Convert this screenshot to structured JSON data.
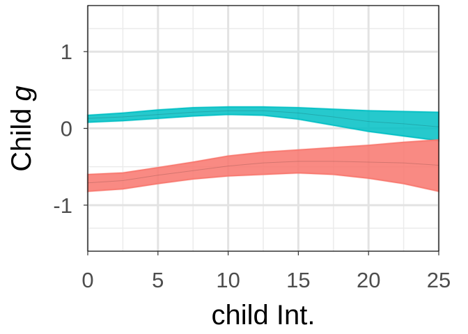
{
  "chart_data": {
    "type": "area",
    "xlabel": "child Int.",
    "ylabel": "Child",
    "ylabel_symbol": "g",
    "xlim": [
      0,
      25
    ],
    "ylim": [
      -1.6,
      1.6
    ],
    "x_ticks": [
      0,
      5,
      10,
      15,
      20,
      25
    ],
    "y_ticks": [
      -1,
      0,
      1
    ],
    "grid": true,
    "legend": "none",
    "colors": {
      "teal": "#00BFC4",
      "red": "#F8766D"
    },
    "series": [
      {
        "color": "#00BFC4",
        "x": [
          0,
          2.5,
          5,
          7.5,
          10,
          12.5,
          15,
          17.5,
          20,
          22.5,
          25
        ],
        "upper": [
          0.17,
          0.2,
          0.24,
          0.27,
          0.28,
          0.28,
          0.27,
          0.25,
          0.23,
          0.22,
          0.21
        ],
        "lower": [
          0.08,
          0.1,
          0.13,
          0.16,
          0.18,
          0.17,
          0.12,
          0.04,
          -0.04,
          -0.1,
          -0.16
        ],
        "mean": [
          0.13,
          0.15,
          0.18,
          0.21,
          0.23,
          0.23,
          0.2,
          0.15,
          0.09,
          0.06,
          0.02
        ]
      },
      {
        "color": "#F8766D",
        "x": [
          0,
          2.5,
          5,
          7.5,
          10,
          12.5,
          15,
          17.5,
          20,
          22.5,
          25
        ],
        "upper": [
          -0.6,
          -0.58,
          -0.51,
          -0.44,
          -0.36,
          -0.31,
          -0.28,
          -0.25,
          -0.22,
          -0.18,
          -0.15
        ],
        "lower": [
          -0.82,
          -0.79,
          -0.72,
          -0.66,
          -0.62,
          -0.6,
          -0.58,
          -0.6,
          -0.65,
          -0.72,
          -0.82
        ],
        "mean": [
          -0.71,
          -0.68,
          -0.61,
          -0.55,
          -0.49,
          -0.45,
          -0.43,
          -0.43,
          -0.44,
          -0.45,
          -0.48
        ]
      }
    ]
  }
}
